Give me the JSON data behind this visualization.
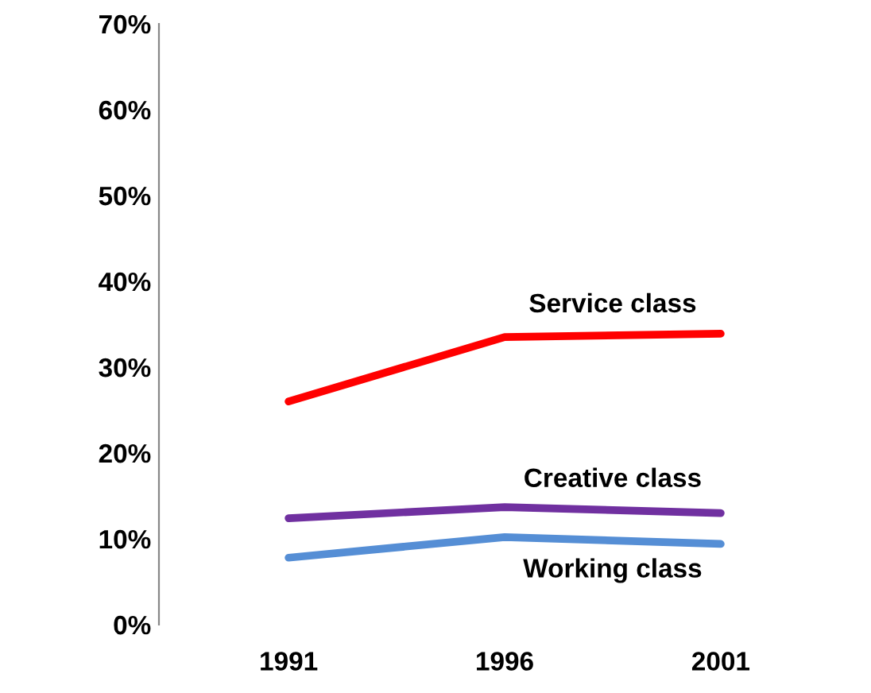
{
  "chart_data": {
    "type": "line",
    "categories": [
      "1991",
      "1996",
      "2001"
    ],
    "series": [
      {
        "name": "Service class",
        "color": "#ff0000",
        "values": [
          26,
          33.5,
          33.9
        ]
      },
      {
        "name": "Creative class",
        "color": "#7030a0",
        "values": [
          12.4,
          13.7,
          13.0
        ]
      },
      {
        "name": "Working class",
        "color": "#558ed5",
        "values": [
          7.8,
          10.2,
          9.4
        ]
      }
    ],
    "ylim": [
      0,
      70
    ],
    "yticks": [
      {
        "value": 0,
        "label": "0%"
      },
      {
        "value": 10,
        "label": "10%"
      },
      {
        "value": 20,
        "label": "20%"
      },
      {
        "value": 30,
        "label": "30%"
      },
      {
        "value": 40,
        "label": "40%"
      },
      {
        "value": 50,
        "label": "50%"
      },
      {
        "value": 60,
        "label": "60%"
      },
      {
        "value": 70,
        "label": "70%"
      }
    ],
    "grid": false,
    "legend": false,
    "marker": "none",
    "line_style": "solid"
  }
}
